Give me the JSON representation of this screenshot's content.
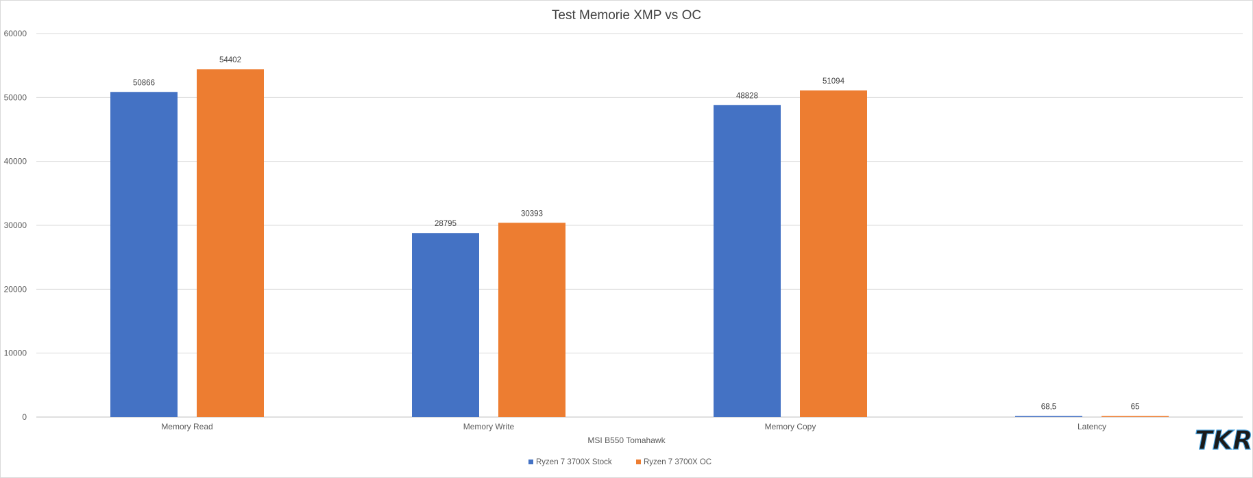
{
  "chart_data": {
    "type": "bar",
    "title": "Test Memorie XMP vs OC",
    "xlabel": "MSI B550 Tomahawk",
    "ylabel": "",
    "ylim": [
      0,
      60000
    ],
    "yticks": [
      0,
      10000,
      20000,
      30000,
      40000,
      50000,
      60000
    ],
    "grid": true,
    "legend_position": "bottom",
    "categories": [
      "Memory Read",
      "Memory Write",
      "Memory Copy",
      "Latency"
    ],
    "series": [
      {
        "name": "Ryzen 7 3700X Stock",
        "color": "#4472C4",
        "values": [
          50866,
          28795,
          48828,
          68.5
        ],
        "labels": [
          "50866",
          "28795",
          "48828",
          "68,5"
        ]
      },
      {
        "name": "Ryzen 7 3700X OC",
        "color": "#ED7D31",
        "values": [
          54402,
          30393,
          51094,
          65
        ],
        "labels": [
          "54402",
          "30393",
          "51094",
          "65"
        ]
      }
    ]
  },
  "logo": {
    "text": "TKR"
  }
}
